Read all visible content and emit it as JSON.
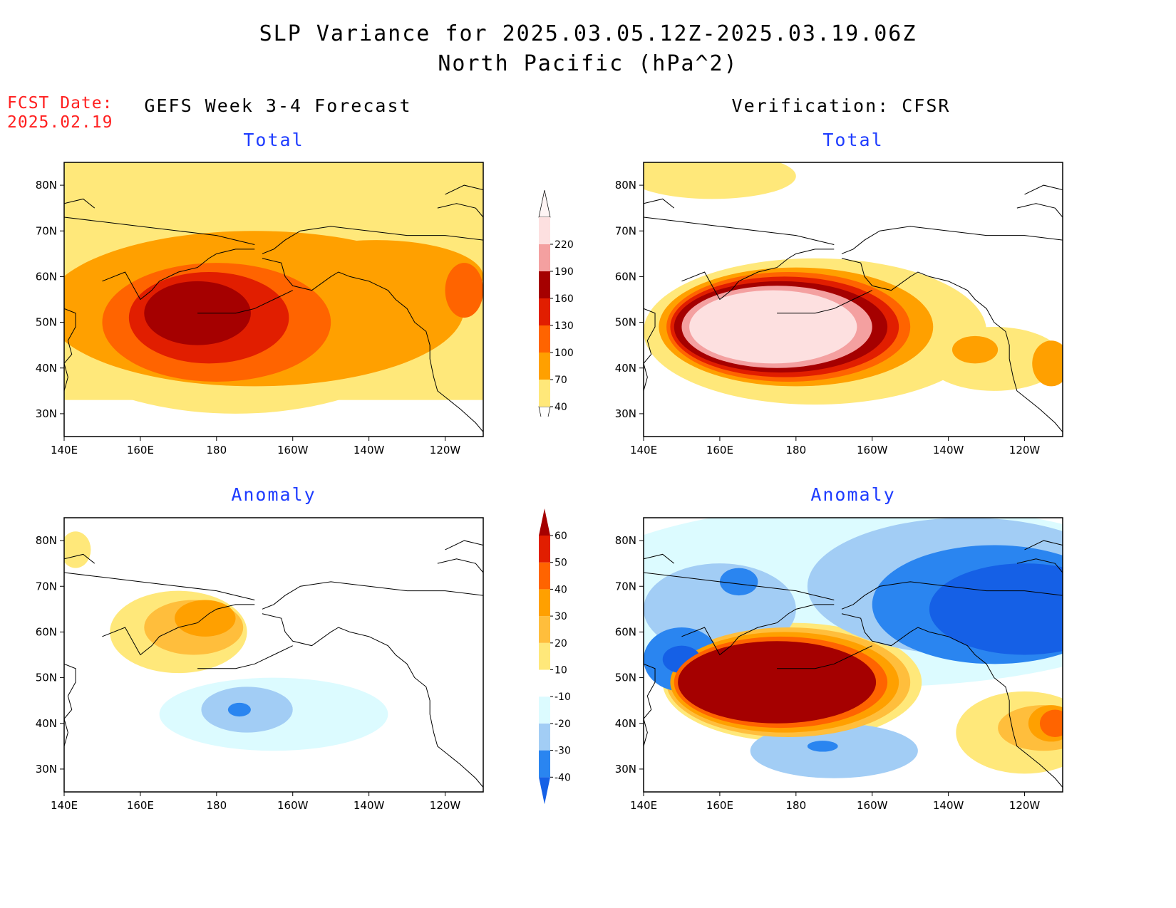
{
  "header": {
    "title_line1": "SLP Variance for 2025.03.05.12Z-2025.03.19.06Z",
    "title_line2": "North Pacific (hPa^2)",
    "fcst_label": "FCST Date:",
    "fcst_date": "2025.02.19",
    "left_column_title": "GEFS Week 3-4 Forecast",
    "right_column_title": "Verification: CFSR"
  },
  "chart_data": [
    {
      "type": "heatmap",
      "id": "forecast-total",
      "title": "Total",
      "xlabel": "",
      "ylabel": "",
      "xticks": [
        "140E",
        "160E",
        "180",
        "160W",
        "140W",
        "120W"
      ],
      "yticks": [
        "80N",
        "70N",
        "60N",
        "50N",
        "40N",
        "30N"
      ],
      "levels": [
        40,
        70,
        100,
        130,
        160,
        190,
        220
      ],
      "features": [
        {
          "level": 40,
          "lon": 185,
          "lat": 58,
          "rx": 60,
          "ry": 28
        },
        {
          "level": 70,
          "lon": 190,
          "lat": 53,
          "rx": 55,
          "ry": 17
        },
        {
          "level": 70,
          "lon": 222,
          "lat": 60,
          "rx": 28,
          "ry": 8
        },
        {
          "level": 100,
          "lon": 180,
          "lat": 50,
          "rx": 30,
          "ry": 13
        },
        {
          "level": 100,
          "lon": 245,
          "lat": 57,
          "rx": 5,
          "ry": 6
        },
        {
          "level": 130,
          "lon": 178,
          "lat": 51,
          "rx": 21,
          "ry": 10
        },
        {
          "level": 160,
          "lon": 175,
          "lat": 52,
          "rx": 14,
          "ry": 7
        }
      ]
    },
    {
      "type": "heatmap",
      "id": "verification-total",
      "title": "Total",
      "xlabel": "",
      "ylabel": "",
      "xticks": [
        "140E",
        "160E",
        "180",
        "160W",
        "140W",
        "120W"
      ],
      "yticks": [
        "80N",
        "70N",
        "60N",
        "50N",
        "40N",
        "30N"
      ],
      "levels": [
        40,
        70,
        100,
        130,
        160,
        190,
        220
      ],
      "features": [
        {
          "level": 40,
          "lon": 185,
          "lat": 48,
          "rx": 45,
          "ry": 16
        },
        {
          "level": 40,
          "lon": 158,
          "lat": 82,
          "rx": 22,
          "ry": 5
        },
        {
          "level": 40,
          "lon": 232,
          "lat": 42,
          "rx": 18,
          "ry": 7
        },
        {
          "level": 70,
          "lon": 180,
          "lat": 49,
          "rx": 36,
          "ry": 13
        },
        {
          "level": 70,
          "lon": 227,
          "lat": 44,
          "rx": 6,
          "ry": 3
        },
        {
          "level": 70,
          "lon": 247,
          "lat": 41,
          "rx": 5,
          "ry": 5
        },
        {
          "level": 100,
          "lon": 178,
          "lat": 49,
          "rx": 32,
          "ry": 12
        },
        {
          "level": 130,
          "lon": 177,
          "lat": 49,
          "rx": 30,
          "ry": 11
        },
        {
          "level": 160,
          "lon": 176,
          "lat": 49,
          "rx": 28,
          "ry": 10
        },
        {
          "level": 190,
          "lon": 175,
          "lat": 49,
          "rx": 25,
          "ry": 9
        },
        {
          "level": 220,
          "lon": 174,
          "lat": 49,
          "rx": 22,
          "ry": 8
        }
      ]
    },
    {
      "type": "heatmap",
      "id": "forecast-anomaly",
      "title": "Anomaly",
      "xlabel": "",
      "ylabel": "",
      "xticks": [
        "140E",
        "160E",
        "180",
        "160W",
        "140W",
        "120W"
      ],
      "yticks": [
        "80N",
        "70N",
        "60N",
        "50N",
        "40N",
        "30N"
      ],
      "levels": [
        -40,
        -30,
        -20,
        -10,
        10,
        20,
        30,
        40,
        50,
        60
      ],
      "features": [
        {
          "level": 10,
          "lon": 170,
          "lat": 60,
          "rx": 18,
          "ry": 9
        },
        {
          "level": 10,
          "lon": 143,
          "lat": 78,
          "rx": 4,
          "ry": 4
        },
        {
          "level": 20,
          "lon": 174,
          "lat": 61,
          "rx": 13,
          "ry": 6
        },
        {
          "level": 30,
          "lon": 177,
          "lat": 63,
          "rx": 8,
          "ry": 4
        },
        {
          "level": -10,
          "lon": 195,
          "lat": 42,
          "rx": 30,
          "ry": 8
        },
        {
          "level": -20,
          "lon": 188,
          "lat": 43,
          "rx": 12,
          "ry": 5
        },
        {
          "level": -30,
          "lon": 186,
          "lat": 43,
          "rx": 3,
          "ry": 1.5
        }
      ]
    },
    {
      "type": "heatmap",
      "id": "verification-anomaly",
      "title": "Anomaly",
      "xlabel": "",
      "ylabel": "",
      "xticks": [
        "140E",
        "160E",
        "180",
        "160W",
        "140W",
        "120W"
      ],
      "yticks": [
        "80N",
        "70N",
        "60N",
        "50N",
        "40N",
        "30N"
      ],
      "levels": [
        -40,
        -30,
        -20,
        -10,
        10,
        20,
        30,
        40,
        50,
        60
      ],
      "features": [
        {
          "level": -10,
          "lon": 200,
          "lat": 68,
          "rx": 80,
          "ry": 20
        },
        {
          "level": -20,
          "lon": 225,
          "lat": 70,
          "rx": 42,
          "ry": 15
        },
        {
          "level": -20,
          "lon": 160,
          "lat": 65,
          "rx": 20,
          "ry": 10
        },
        {
          "level": -20,
          "lon": 190,
          "lat": 34,
          "rx": 22,
          "ry": 6
        },
        {
          "level": -30,
          "lon": 232,
          "lat": 66,
          "rx": 32,
          "ry": 13
        },
        {
          "level": -30,
          "lon": 150,
          "lat": 54,
          "rx": 10,
          "ry": 7
        },
        {
          "level": -30,
          "lon": 165,
          "lat": 71,
          "rx": 5,
          "ry": 3
        },
        {
          "level": -30,
          "lon": 187,
          "lat": 35,
          "rx": 4,
          "ry": 1.2
        },
        {
          "level": -40,
          "lon": 240,
          "lat": 65,
          "rx": 25,
          "ry": 10
        },
        {
          "level": -40,
          "lon": 150,
          "lat": 54,
          "rx": 5,
          "ry": 3
        },
        {
          "level": 10,
          "lon": 179,
          "lat": 49,
          "rx": 34,
          "ry": 13
        },
        {
          "level": 10,
          "lon": 240,
          "lat": 38,
          "rx": 18,
          "ry": 9
        },
        {
          "level": 20,
          "lon": 178,
          "lat": 49,
          "rx": 32,
          "ry": 12
        },
        {
          "level": 20,
          "lon": 245,
          "lat": 39,
          "rx": 12,
          "ry": 5
        },
        {
          "level": 30,
          "lon": 177,
          "lat": 49,
          "rx": 30,
          "ry": 11
        },
        {
          "level": 30,
          "lon": 247,
          "lat": 40,
          "rx": 6,
          "ry": 4
        },
        {
          "level": 40,
          "lon": 176,
          "lat": 49,
          "rx": 28,
          "ry": 10
        },
        {
          "level": 40,
          "lon": 248,
          "lat": 40,
          "rx": 4,
          "ry": 3
        },
        {
          "level": 60,
          "lon": 175,
          "lat": 49,
          "rx": 26,
          "ry": 9
        }
      ]
    }
  ],
  "colorbars": {
    "total": {
      "labels": [
        "40",
        "70",
        "100",
        "130",
        "160",
        "190",
        "220"
      ],
      "colors": [
        "#ffe87a",
        "#ffa000",
        "#ff6400",
        "#e11e00",
        "#a50000",
        "#f4a0a0",
        "#fde0e0"
      ]
    },
    "anomaly": {
      "labels": [
        "-40",
        "-30",
        "-20",
        "-10",
        "10",
        "20",
        "30",
        "40",
        "50",
        "60"
      ],
      "colors": [
        "#1560e6",
        "#2a85f0",
        "#a2cdf5",
        "#dcfbff",
        "#ffffff",
        "#ffe87a",
        "#ffbe3c",
        "#ffa000",
        "#ff6400",
        "#e11e00",
        "#a50000"
      ]
    }
  }
}
